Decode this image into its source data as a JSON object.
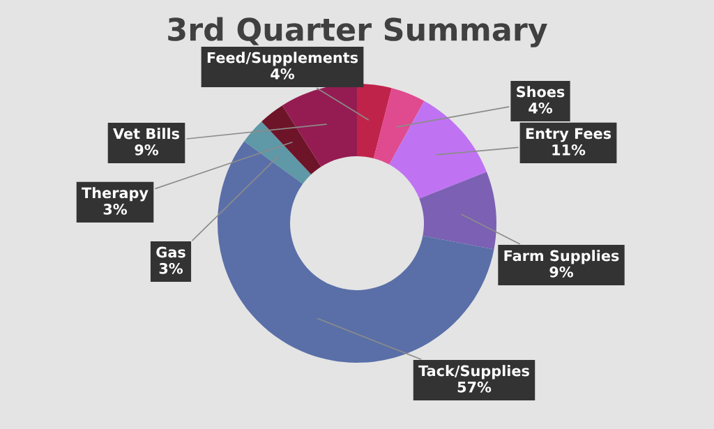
{
  "chart_data": {
    "type": "donut",
    "title": "3rd Quarter Summary",
    "categories": [
      "Feed/Supplements",
      "Shoes",
      "Entry Fees",
      "Farm Supplies",
      "Tack/Supplies",
      "Gas",
      "Therapy",
      "Vet Bills"
    ],
    "values": [
      4,
      4,
      11,
      9,
      57,
      3,
      3,
      9
    ],
    "value_labels": [
      "4%",
      "4%",
      "11%",
      "9%",
      "57%",
      "3%",
      "3%",
      "9%"
    ],
    "colors": [
      "#c0234a",
      "#e04a8f",
      "#bf73f2",
      "#7b60b4",
      "#5a6fa8",
      "#5f98a6",
      "#6e1428",
      "#951c52"
    ],
    "legend": false
  }
}
